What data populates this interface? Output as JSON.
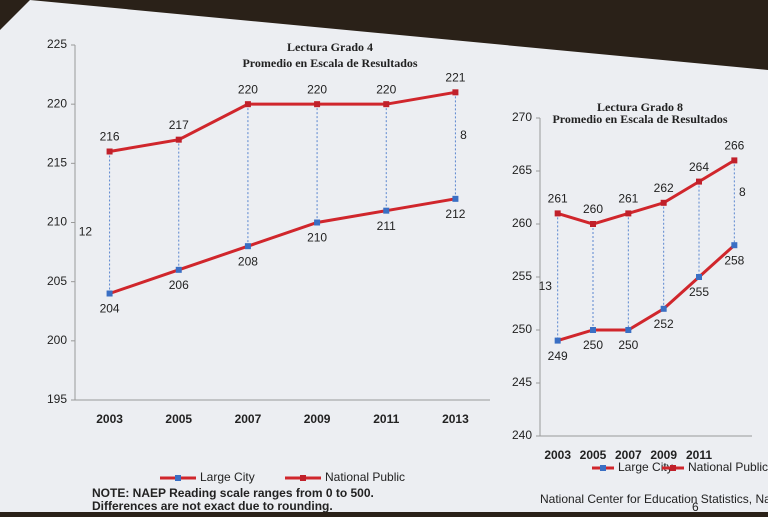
{
  "chart_data": [
    {
      "type": "line",
      "title": "Lectura  Grado 4",
      "subtitle": "Promedio en Escala de Resultados",
      "categories": [
        "2003",
        "2005",
        "2007",
        "2009",
        "2011",
        "2013"
      ],
      "series": [
        {
          "name": "Large City",
          "color": "#d0262c",
          "marker_color": "#3a6fc4",
          "values": [
            204,
            206,
            208,
            210,
            211,
            212
          ]
        },
        {
          "name": "National Public",
          "color": "#d0262c",
          "marker_color": "#c0202a",
          "values": [
            216,
            217,
            220,
            220,
            220,
            221
          ]
        }
      ],
      "ylim": [
        195,
        225
      ],
      "yticks": [
        195,
        200,
        205,
        210,
        215,
        220,
        225
      ],
      "annotations": [
        "12",
        "8"
      ]
    },
    {
      "type": "line",
      "title": "Lectura Grado 8",
      "subtitle": "Promedio en Escala de Resultados",
      "categories": [
        "2003",
        "2005",
        "2007",
        "2009",
        "2011",
        null
      ],
      "series": [
        {
          "name": "Large City",
          "color": "#d0262c",
          "marker_color": "#3a6fc4",
          "values": [
            249,
            250,
            250,
            252,
            255,
            258
          ]
        },
        {
          "name": "National Public",
          "color": "#d0262c",
          "marker_color": "#c0202a",
          "values": [
            261,
            260,
            261,
            262,
            264,
            266
          ]
        }
      ],
      "ylim": [
        240,
        270
      ],
      "yticks": [
        240,
        245,
        250,
        255,
        260,
        265,
        270
      ],
      "annotations": [
        "13",
        "8"
      ]
    }
  ],
  "notes": [
    "NOTE: NAEP Reading scale ranges from 0 to 500.",
    "Differences are not exact due to rounding."
  ],
  "source": "National Center for Education Statistics, National Assessment of",
  "page_number": "6"
}
